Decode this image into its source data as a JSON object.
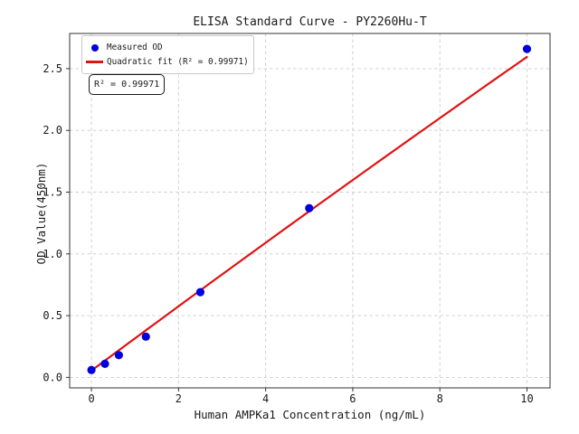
{
  "chart_data": {
    "type": "scatter",
    "title": "ELISA Standard Curve - PY2260Hu-T",
    "xlabel": "Human AMPKa1 Concentration (ng/mL)",
    "ylabel": "OD Value(450nm)",
    "xlim": [
      -0.5,
      10.53
    ],
    "ylim": [
      -0.085,
      2.785
    ],
    "grid": true,
    "legend_position": "upper-left",
    "x_ticks": {
      "values": [
        0,
        2,
        4,
        6,
        8,
        10
      ],
      "labels": [
        "0",
        "2",
        "4",
        "6",
        "8",
        "10"
      ]
    },
    "y_ticks": {
      "values": [
        0,
        0.5,
        1.0,
        1.5,
        2.0,
        2.5
      ],
      "labels": [
        "0.0",
        "0.5",
        "1.0",
        "1.5",
        "2.0",
        "2.5"
      ]
    },
    "series": [
      {
        "name": "Measured OD",
        "type": "scatter",
        "color": "#0000dd",
        "x": [
          0,
          0.31,
          0.63,
          1.25,
          2.5,
          5,
          10
        ],
        "y": [
          0.06,
          0.11,
          0.18,
          0.33,
          0.69,
          1.37,
          2.66
        ]
      },
      {
        "name": "Quadratic fit (R² = 0.99971)",
        "type": "line",
        "color": "#e01212",
        "fit": {
          "a": -0.0008,
          "b": 0.262,
          "c": 0.055,
          "x_min": 0,
          "x_max": 10
        }
      }
    ],
    "annotation": {
      "text": "R² = 0.99971"
    },
    "r_squared": 0.99971
  },
  "colors": {
    "marker_blue": "#0000dd",
    "fit_red": "#e01212",
    "grid": "#cdcdcd",
    "spine": "#333333",
    "text": "#1a1a1a"
  }
}
